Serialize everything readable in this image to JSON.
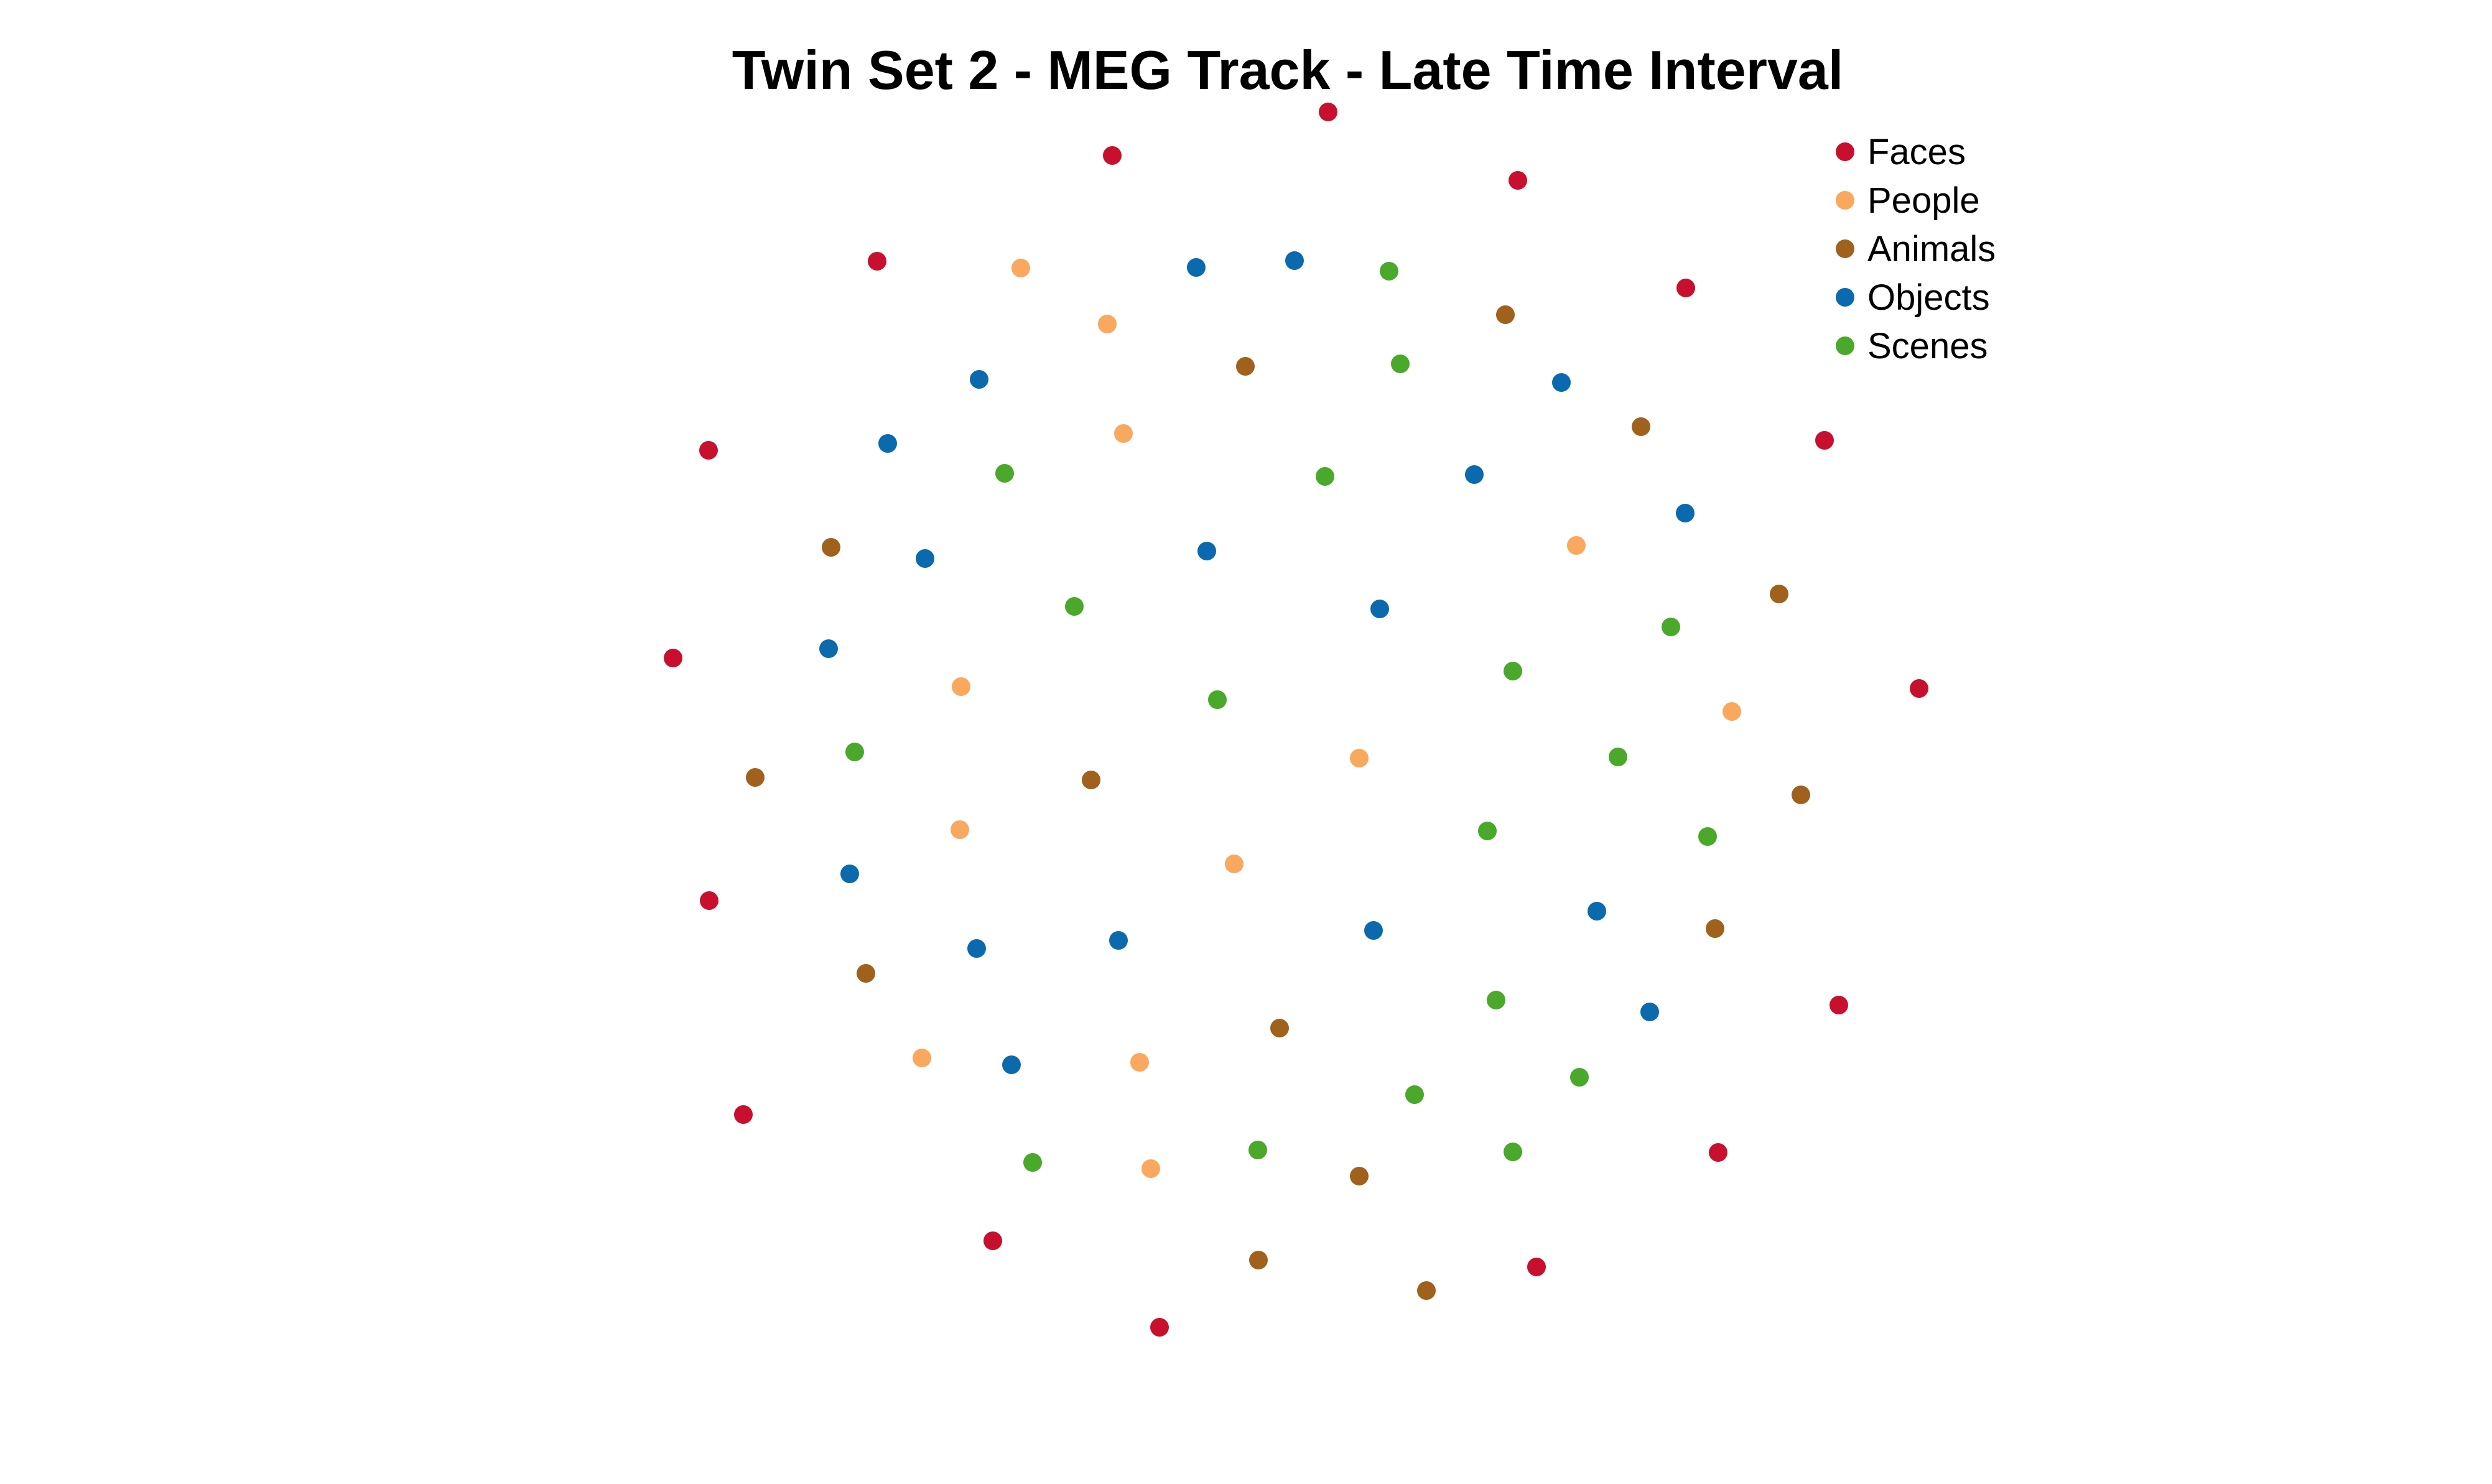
{
  "chart_data": {
    "type": "scatter",
    "title": "Twin Set 2 - MEG Track - Late Time Interval",
    "xlabel": "",
    "ylabel": "",
    "grid": false,
    "axes_visible": false,
    "legend_position": "top-right",
    "series": [
      {
        "name": "Faces",
        "color": "#c8102e",
        "points": [
          [
            2135,
            180
          ],
          [
            1788,
            250
          ],
          [
            2440,
            290
          ],
          [
            1410,
            420
          ],
          [
            2710,
            463
          ],
          [
            1139,
            724
          ],
          [
            2933,
            708
          ],
          [
            1082,
            1058
          ],
          [
            3085,
            1107
          ],
          [
            1140,
            1448
          ],
          [
            2956,
            1616
          ],
          [
            1195,
            1792
          ],
          [
            2762,
            1853
          ],
          [
            1596,
            1995
          ],
          [
            2470,
            2037
          ],
          [
            1864,
            2134
          ]
        ]
      },
      {
        "name": "People",
        "color": "#f9a85d",
        "points": [
          [
            1641,
            431
          ],
          [
            1780,
            521
          ],
          [
            1806,
            697
          ],
          [
            2534,
            877
          ],
          [
            1545,
            1104
          ],
          [
            2784,
            1144
          ],
          [
            2185,
            1219
          ],
          [
            1543,
            1334
          ],
          [
            1984,
            1389
          ],
          [
            1482,
            1701
          ],
          [
            1832,
            1708
          ],
          [
            1850,
            1879
          ]
        ]
      },
      {
        "name": "Animals",
        "color": "#a0611c",
        "points": [
          [
            2420,
            506
          ],
          [
            2002,
            589
          ],
          [
            2638,
            686
          ],
          [
            1336,
            880
          ],
          [
            2860,
            955
          ],
          [
            1214,
            1250
          ],
          [
            1754,
            1254
          ],
          [
            2895,
            1278
          ],
          [
            1392,
            1565
          ],
          [
            2757,
            1493
          ],
          [
            2057,
            1653
          ],
          [
            2185,
            1891
          ],
          [
            2023,
            2026
          ],
          [
            2293,
            2075
          ]
        ]
      },
      {
        "name": "Objects",
        "color": "#0a6aad",
        "points": [
          [
            1923,
            430
          ],
          [
            2081,
            419
          ],
          [
            1574,
            610
          ],
          [
            2510,
            615
          ],
          [
            1427,
            713
          ],
          [
            2370,
            763
          ],
          [
            2709,
            825
          ],
          [
            1487,
            898
          ],
          [
            1940,
            886
          ],
          [
            2218,
            979
          ],
          [
            1332,
            1043
          ],
          [
            1366,
            1405
          ],
          [
            1570,
            1525
          ],
          [
            1798,
            1512
          ],
          [
            2208,
            1496
          ],
          [
            2567,
            1465
          ],
          [
            1626,
            1712
          ],
          [
            2652,
            1627
          ]
        ]
      },
      {
        "name": "Scenes",
        "color": "#4aa82a",
        "points": [
          [
            2233,
            436
          ],
          [
            2251,
            585
          ],
          [
            1615,
            761
          ],
          [
            2130,
            766
          ],
          [
            1727,
            975
          ],
          [
            2686,
            1008
          ],
          [
            1957,
            1125
          ],
          [
            2432,
            1079
          ],
          [
            1374,
            1209
          ],
          [
            2601,
            1217
          ],
          [
            2391,
            1336
          ],
          [
            2745,
            1345
          ],
          [
            2405,
            1608
          ],
          [
            2274,
            1760
          ],
          [
            2539,
            1732
          ],
          [
            1660,
            1869
          ],
          [
            2022,
            1849
          ],
          [
            2432,
            1852
          ]
        ]
      }
    ]
  }
}
